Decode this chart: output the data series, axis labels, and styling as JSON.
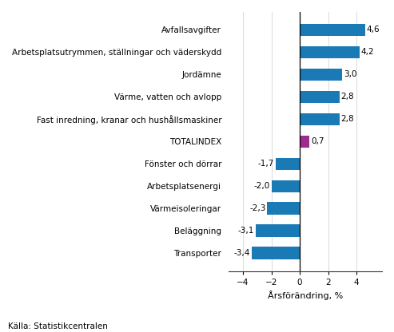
{
  "categories": [
    "Transporter",
    "Beläggning",
    "Värmeisoleringar",
    "Arbetsplatsenergi",
    "Fönster och dörrar",
    "TOTALINDEX",
    "Fast inredning, kranar och hushållsmaskiner",
    "Värme, vatten och avlopp",
    "Jordämne",
    "Arbetsplatsutrymmen, ställningar och väderskydd",
    "Avfallsavgifter"
  ],
  "values": [
    -3.4,
    -3.1,
    -2.3,
    -2.0,
    -1.7,
    0.7,
    2.8,
    2.8,
    3.0,
    4.2,
    4.6
  ],
  "xlabel": "Årsförändring, %",
  "xlim": [
    -5.0,
    5.8
  ],
  "xticks": [
    -4,
    -2,
    0,
    2,
    4
  ],
  "source": "Källa: Statistikcentralen",
  "bar_color_blue": "#1a7ab5",
  "bar_color_purple": "#9b2d8e",
  "label_fontsize": 7.5,
  "value_label_fontsize": 7.5,
  "xlabel_fontsize": 8.0,
  "source_fontsize": 7.5,
  "bar_height": 0.55
}
